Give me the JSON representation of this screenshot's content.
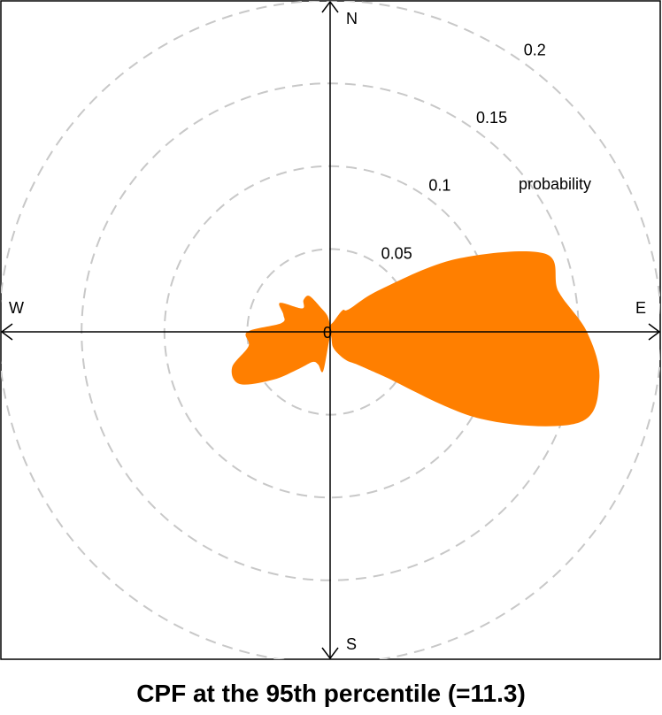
{
  "chart_data": {
    "type": "polar-area",
    "title": "CPF at the 95th percentile (=11.3)",
    "radial_label": "probability",
    "center_label": "0",
    "radial_ticks": [
      {
        "value": 0.05,
        "label": "0.05"
      },
      {
        "value": 0.1,
        "label": "0.1"
      },
      {
        "value": 0.15,
        "label": "0.15"
      },
      {
        "value": 0.2,
        "label": "0.2"
      }
    ],
    "rmax": 0.2,
    "grid": true,
    "direction_labels": {
      "N": "N",
      "E": "E",
      "S": "S",
      "W": "W"
    },
    "series": [
      {
        "color": "#FF7F00",
        "angles_deg": [
          0,
          10,
          20,
          30,
          40,
          50,
          60,
          70,
          80,
          90,
          100,
          110,
          120,
          130,
          140,
          150,
          160,
          170,
          180,
          190,
          200,
          210,
          220,
          230,
          240,
          250,
          260,
          270,
          280,
          290,
          300,
          310,
          320,
          330,
          340,
          350
        ],
        "values": [
          0.0045,
          0.005,
          0.007,
          0.015,
          0.018,
          0.04,
          0.088,
          0.138,
          0.14,
          0.155,
          0.165,
          0.16,
          0.105,
          0.041,
          0.026,
          0.02,
          0.014,
          0.009,
          0.003,
          0.024,
          0.021,
          0.021,
          0.029,
          0.045,
          0.063,
          0.063,
          0.05,
          0.05,
          0.03,
          0.03,
          0.035,
          0.022,
          0.025,
          0.025,
          0.015,
          0.01
        ]
      }
    ]
  }
}
